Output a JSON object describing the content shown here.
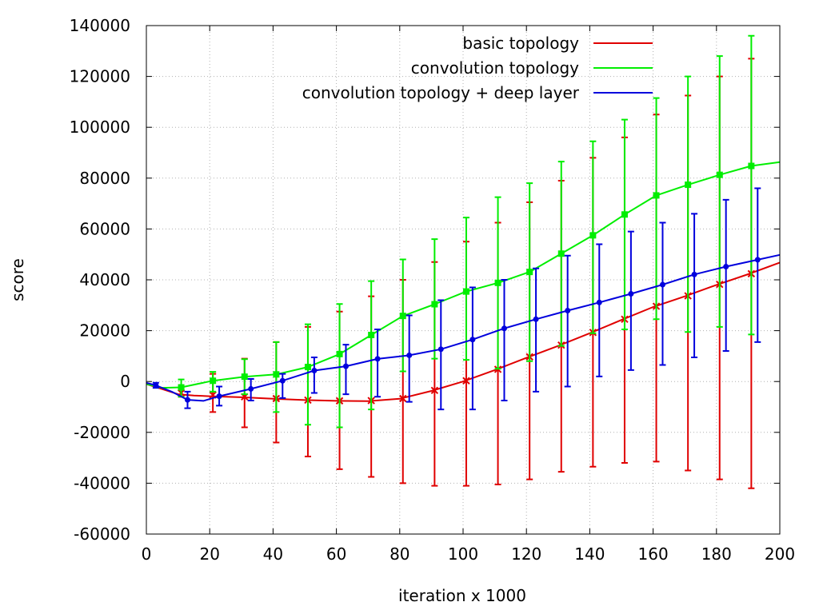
{
  "chart_data": {
    "type": "line",
    "title": "",
    "xlabel": "iteration x 1000",
    "ylabel": "score",
    "xlim": [
      0,
      200
    ],
    "ylim": [
      -60000,
      140000
    ],
    "xticks": [
      0,
      20,
      40,
      60,
      80,
      100,
      120,
      140,
      160,
      180,
      200
    ],
    "yticks": [
      -60000,
      -40000,
      -20000,
      0,
      20000,
      40000,
      60000,
      80000,
      100000,
      120000,
      140000
    ],
    "xtick_labels": [
      "0",
      "20",
      "40",
      "60",
      "80",
      "100",
      "120",
      "140",
      "160",
      "180",
      "200"
    ],
    "ytick_labels": [
      "-60000",
      "-40000",
      "-20000",
      "0",
      "20000",
      "40000",
      "60000",
      "80000",
      "100000",
      "120000",
      "140000"
    ],
    "grid": true,
    "legend_position": "top-right",
    "series": [
      {
        "name": "basic topology",
        "color": "#e00000",
        "marker": "x",
        "line": [
          [
            0,
            -1000
          ],
          [
            5,
            -3000
          ],
          [
            10,
            -5000
          ],
          [
            15,
            -5500
          ],
          [
            20,
            -5800
          ],
          [
            30,
            -6200
          ],
          [
            40,
            -6800
          ],
          [
            50,
            -7300
          ],
          [
            60,
            -7600
          ],
          [
            70,
            -7700
          ],
          [
            80,
            -6800
          ],
          [
            90,
            -3700
          ],
          [
            100,
            0
          ],
          [
            110,
            4500
          ],
          [
            120,
            9300
          ],
          [
            130,
            14000
          ],
          [
            140,
            19000
          ],
          [
            150,
            24200
          ],
          [
            160,
            29300
          ],
          [
            170,
            33500
          ],
          [
            180,
            38000
          ],
          [
            190,
            42200
          ],
          [
            200,
            46800
          ]
        ],
        "points": [
          {
            "x": 11,
            "y": -4500,
            "low": -6000,
            "high": -3000
          },
          {
            "x": 21,
            "y": -5300,
            "low": -12000,
            "high": 3000
          },
          {
            "x": 31,
            "y": -6000,
            "low": -18000,
            "high": 9000
          },
          {
            "x": 41,
            "y": -6700,
            "low": -24000,
            "high": 15500
          },
          {
            "x": 51,
            "y": -7300,
            "low": -29500,
            "high": 21500
          },
          {
            "x": 61,
            "y": -7600,
            "low": -34500,
            "high": 27500
          },
          {
            "x": 71,
            "y": -7500,
            "low": -37500,
            "high": 33500
          },
          {
            "x": 81,
            "y": -6700,
            "low": -40000,
            "high": 40000
          },
          {
            "x": 91,
            "y": -3500,
            "low": -41000,
            "high": 47000
          },
          {
            "x": 101,
            "y": 300,
            "low": -41000,
            "high": 55000
          },
          {
            "x": 111,
            "y": 4800,
            "low": -40500,
            "high": 62500
          },
          {
            "x": 121,
            "y": 9700,
            "low": -38500,
            "high": 70500
          },
          {
            "x": 131,
            "y": 14300,
            "low": -35500,
            "high": 79000
          },
          {
            "x": 141,
            "y": 19300,
            "low": -33500,
            "high": 88000
          },
          {
            "x": 151,
            "y": 24500,
            "low": -32000,
            "high": 96000
          },
          {
            "x": 161,
            "y": 29600,
            "low": -31500,
            "high": 105000
          },
          {
            "x": 171,
            "y": 33700,
            "low": -35000,
            "high": 112500
          },
          {
            "x": 181,
            "y": 38200,
            "low": -38500,
            "high": 120000
          },
          {
            "x": 191,
            "y": 42400,
            "low": -42000,
            "high": 127000
          }
        ]
      },
      {
        "name": "convolution topology",
        "color": "#00ee00",
        "marker": "square",
        "line": [
          [
            0,
            -1000
          ],
          [
            5,
            -2500
          ],
          [
            11,
            -2300
          ],
          [
            21,
            300
          ],
          [
            31,
            1900
          ],
          [
            41,
            2800
          ],
          [
            51,
            5700
          ],
          [
            61,
            10800
          ],
          [
            71,
            18300
          ],
          [
            81,
            25800
          ],
          [
            91,
            30400
          ],
          [
            101,
            35400
          ],
          [
            111,
            38800
          ],
          [
            121,
            43100
          ],
          [
            131,
            50300
          ],
          [
            141,
            57500
          ],
          [
            151,
            65700
          ],
          [
            161,
            73200
          ],
          [
            171,
            77400
          ],
          [
            181,
            81300
          ],
          [
            191,
            84800
          ],
          [
            200,
            86300
          ]
        ],
        "points": [
          {
            "x": 11,
            "y": -2300,
            "low": -6000,
            "high": 800
          },
          {
            "x": 21,
            "y": 300,
            "low": -4000,
            "high": 3800
          },
          {
            "x": 31,
            "y": 1900,
            "low": -5000,
            "high": 8800
          },
          {
            "x": 41,
            "y": 2800,
            "low": -12000,
            "high": 15500
          },
          {
            "x": 51,
            "y": 5700,
            "low": -17000,
            "high": 22500
          },
          {
            "x": 61,
            "y": 10800,
            "low": -18000,
            "high": 30500
          },
          {
            "x": 71,
            "y": 18300,
            "low": -11000,
            "high": 39500
          },
          {
            "x": 81,
            "y": 25800,
            "low": 4000,
            "high": 48000
          },
          {
            "x": 91,
            "y": 30400,
            "low": 9000,
            "high": 56000
          },
          {
            "x": 101,
            "y": 35400,
            "low": 8500,
            "high": 64500
          },
          {
            "x": 111,
            "y": 38800,
            "low": 5000,
            "high": 72500
          },
          {
            "x": 121,
            "y": 43100,
            "low": 8000,
            "high": 78000
          },
          {
            "x": 131,
            "y": 50300,
            "low": 14000,
            "high": 86500
          },
          {
            "x": 141,
            "y": 57500,
            "low": 19000,
            "high": 94500
          },
          {
            "x": 151,
            "y": 65700,
            "low": 20500,
            "high": 103000
          },
          {
            "x": 161,
            "y": 73200,
            "low": 24500,
            "high": 111500
          },
          {
            "x": 171,
            "y": 77400,
            "low": 19500,
            "high": 120000
          },
          {
            "x": 181,
            "y": 81300,
            "low": 21500,
            "high": 128000
          },
          {
            "x": 191,
            "y": 84800,
            "low": 18500,
            "high": 136000
          }
        ]
      },
      {
        "name": "convolution topology + deep layer",
        "color": "#0000dd",
        "marker": "circle",
        "line": [
          [
            0,
            -500
          ],
          [
            3,
            -1500
          ],
          [
            8,
            -4000
          ],
          [
            13,
            -7200
          ],
          [
            18,
            -7600
          ],
          [
            23,
            -5800
          ],
          [
            33,
            -2900
          ],
          [
            43,
            300
          ],
          [
            53,
            4300
          ],
          [
            63,
            6000
          ],
          [
            73,
            8900
          ],
          [
            83,
            10300
          ],
          [
            93,
            12700
          ],
          [
            103,
            16500
          ],
          [
            113,
            20900
          ],
          [
            123,
            24500
          ],
          [
            133,
            27900
          ],
          [
            143,
            31100
          ],
          [
            153,
            34500
          ],
          [
            163,
            38100
          ],
          [
            173,
            42100
          ],
          [
            183,
            45200
          ],
          [
            193,
            47900
          ],
          [
            200,
            49800
          ]
        ],
        "points": [
          {
            "x": 3,
            "y": -1500,
            "low": -2500,
            "high": -500
          },
          {
            "x": 13,
            "y": -7200,
            "low": -10500,
            "high": -4000
          },
          {
            "x": 23,
            "y": -5800,
            "low": -9500,
            "high": -2000
          },
          {
            "x": 33,
            "y": -2900,
            "low": -7500,
            "high": 1000
          },
          {
            "x": 43,
            "y": 300,
            "low": -6500,
            "high": 3000
          },
          {
            "x": 53,
            "y": 4300,
            "low": -4500,
            "high": 9500
          },
          {
            "x": 63,
            "y": 6000,
            "low": -5000,
            "high": 14500
          },
          {
            "x": 73,
            "y": 8900,
            "low": -6000,
            "high": 20500
          },
          {
            "x": 83,
            "y": 10300,
            "low": -8000,
            "high": 26000
          },
          {
            "x": 93,
            "y": 12700,
            "low": -11000,
            "high": 32000
          },
          {
            "x": 103,
            "y": 16500,
            "low": -11000,
            "high": 37000
          },
          {
            "x": 113,
            "y": 20900,
            "low": -7500,
            "high": 40000
          },
          {
            "x": 123,
            "y": 24500,
            "low": -4000,
            "high": 44500
          },
          {
            "x": 133,
            "y": 27900,
            "low": -2000,
            "high": 49500
          },
          {
            "x": 143,
            "y": 31100,
            "low": 2000,
            "high": 54000
          },
          {
            "x": 153,
            "y": 34500,
            "low": 4500,
            "high": 59000
          },
          {
            "x": 163,
            "y": 38100,
            "low": 6500,
            "high": 62500
          },
          {
            "x": 173,
            "y": 42100,
            "low": 9500,
            "high": 66000
          },
          {
            "x": 183,
            "y": 45200,
            "low": 12000,
            "high": 71500
          },
          {
            "x": 193,
            "y": 47900,
            "low": 15500,
            "high": 76000
          }
        ]
      }
    ]
  }
}
